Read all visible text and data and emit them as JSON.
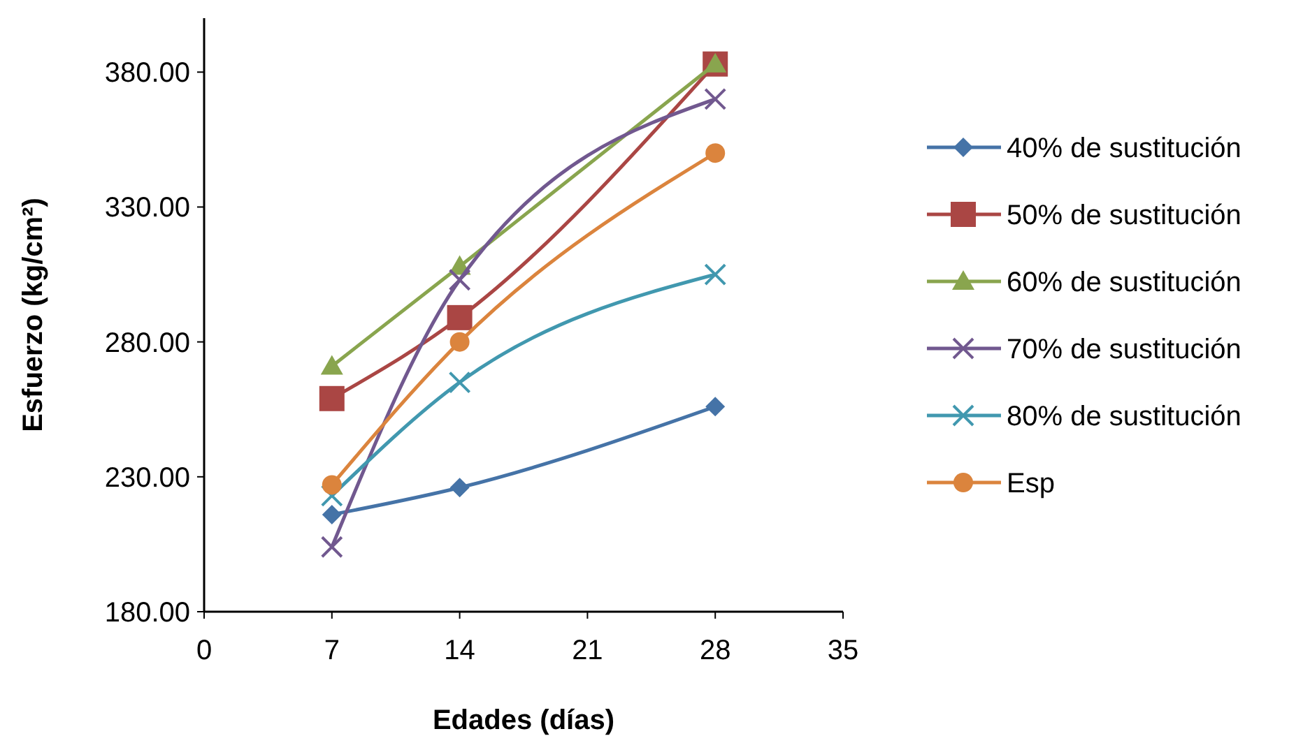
{
  "chart_data": {
    "type": "line",
    "xlabel": "Edades (días)",
    "ylabel": "Esfuerzo (kg/cm²)",
    "x": [
      7,
      14,
      28
    ],
    "xlim": [
      0,
      35
    ],
    "xticks": [
      0,
      7,
      14,
      21,
      28,
      35
    ],
    "ylim": [
      180,
      400
    ],
    "yticks": [
      {
        "value": 180,
        "label": "180.00"
      },
      {
        "value": 230,
        "label": "230.00"
      },
      {
        "value": 280,
        "label": "280.00"
      },
      {
        "value": 330,
        "label": "330.00"
      },
      {
        "value": 380,
        "label": "380.00"
      }
    ],
    "grid": false,
    "legend": "right",
    "series": [
      {
        "name": "40% de sustitución",
        "color": "#4573a7",
        "marker": "diamond",
        "values": [
          216,
          226,
          256
        ]
      },
      {
        "name": "50% de sustitución",
        "color": "#aa4644",
        "marker": "square",
        "values": [
          259,
          289,
          383
        ]
      },
      {
        "name": "60% de sustitución",
        "color": "#89a54e",
        "marker": "triangle",
        "values": [
          271,
          308,
          383
        ]
      },
      {
        "name": "70% de sustitución",
        "color": "#71588f",
        "marker": "cross",
        "values": [
          204,
          303,
          370
        ]
      },
      {
        "name": "80% de sustitución",
        "color": "#4198af",
        "marker": "cross",
        "values": [
          223,
          265,
          305
        ]
      },
      {
        "name": "Esp",
        "color": "#db843d",
        "marker": "circle",
        "values": [
          227,
          280,
          350
        ]
      }
    ]
  }
}
